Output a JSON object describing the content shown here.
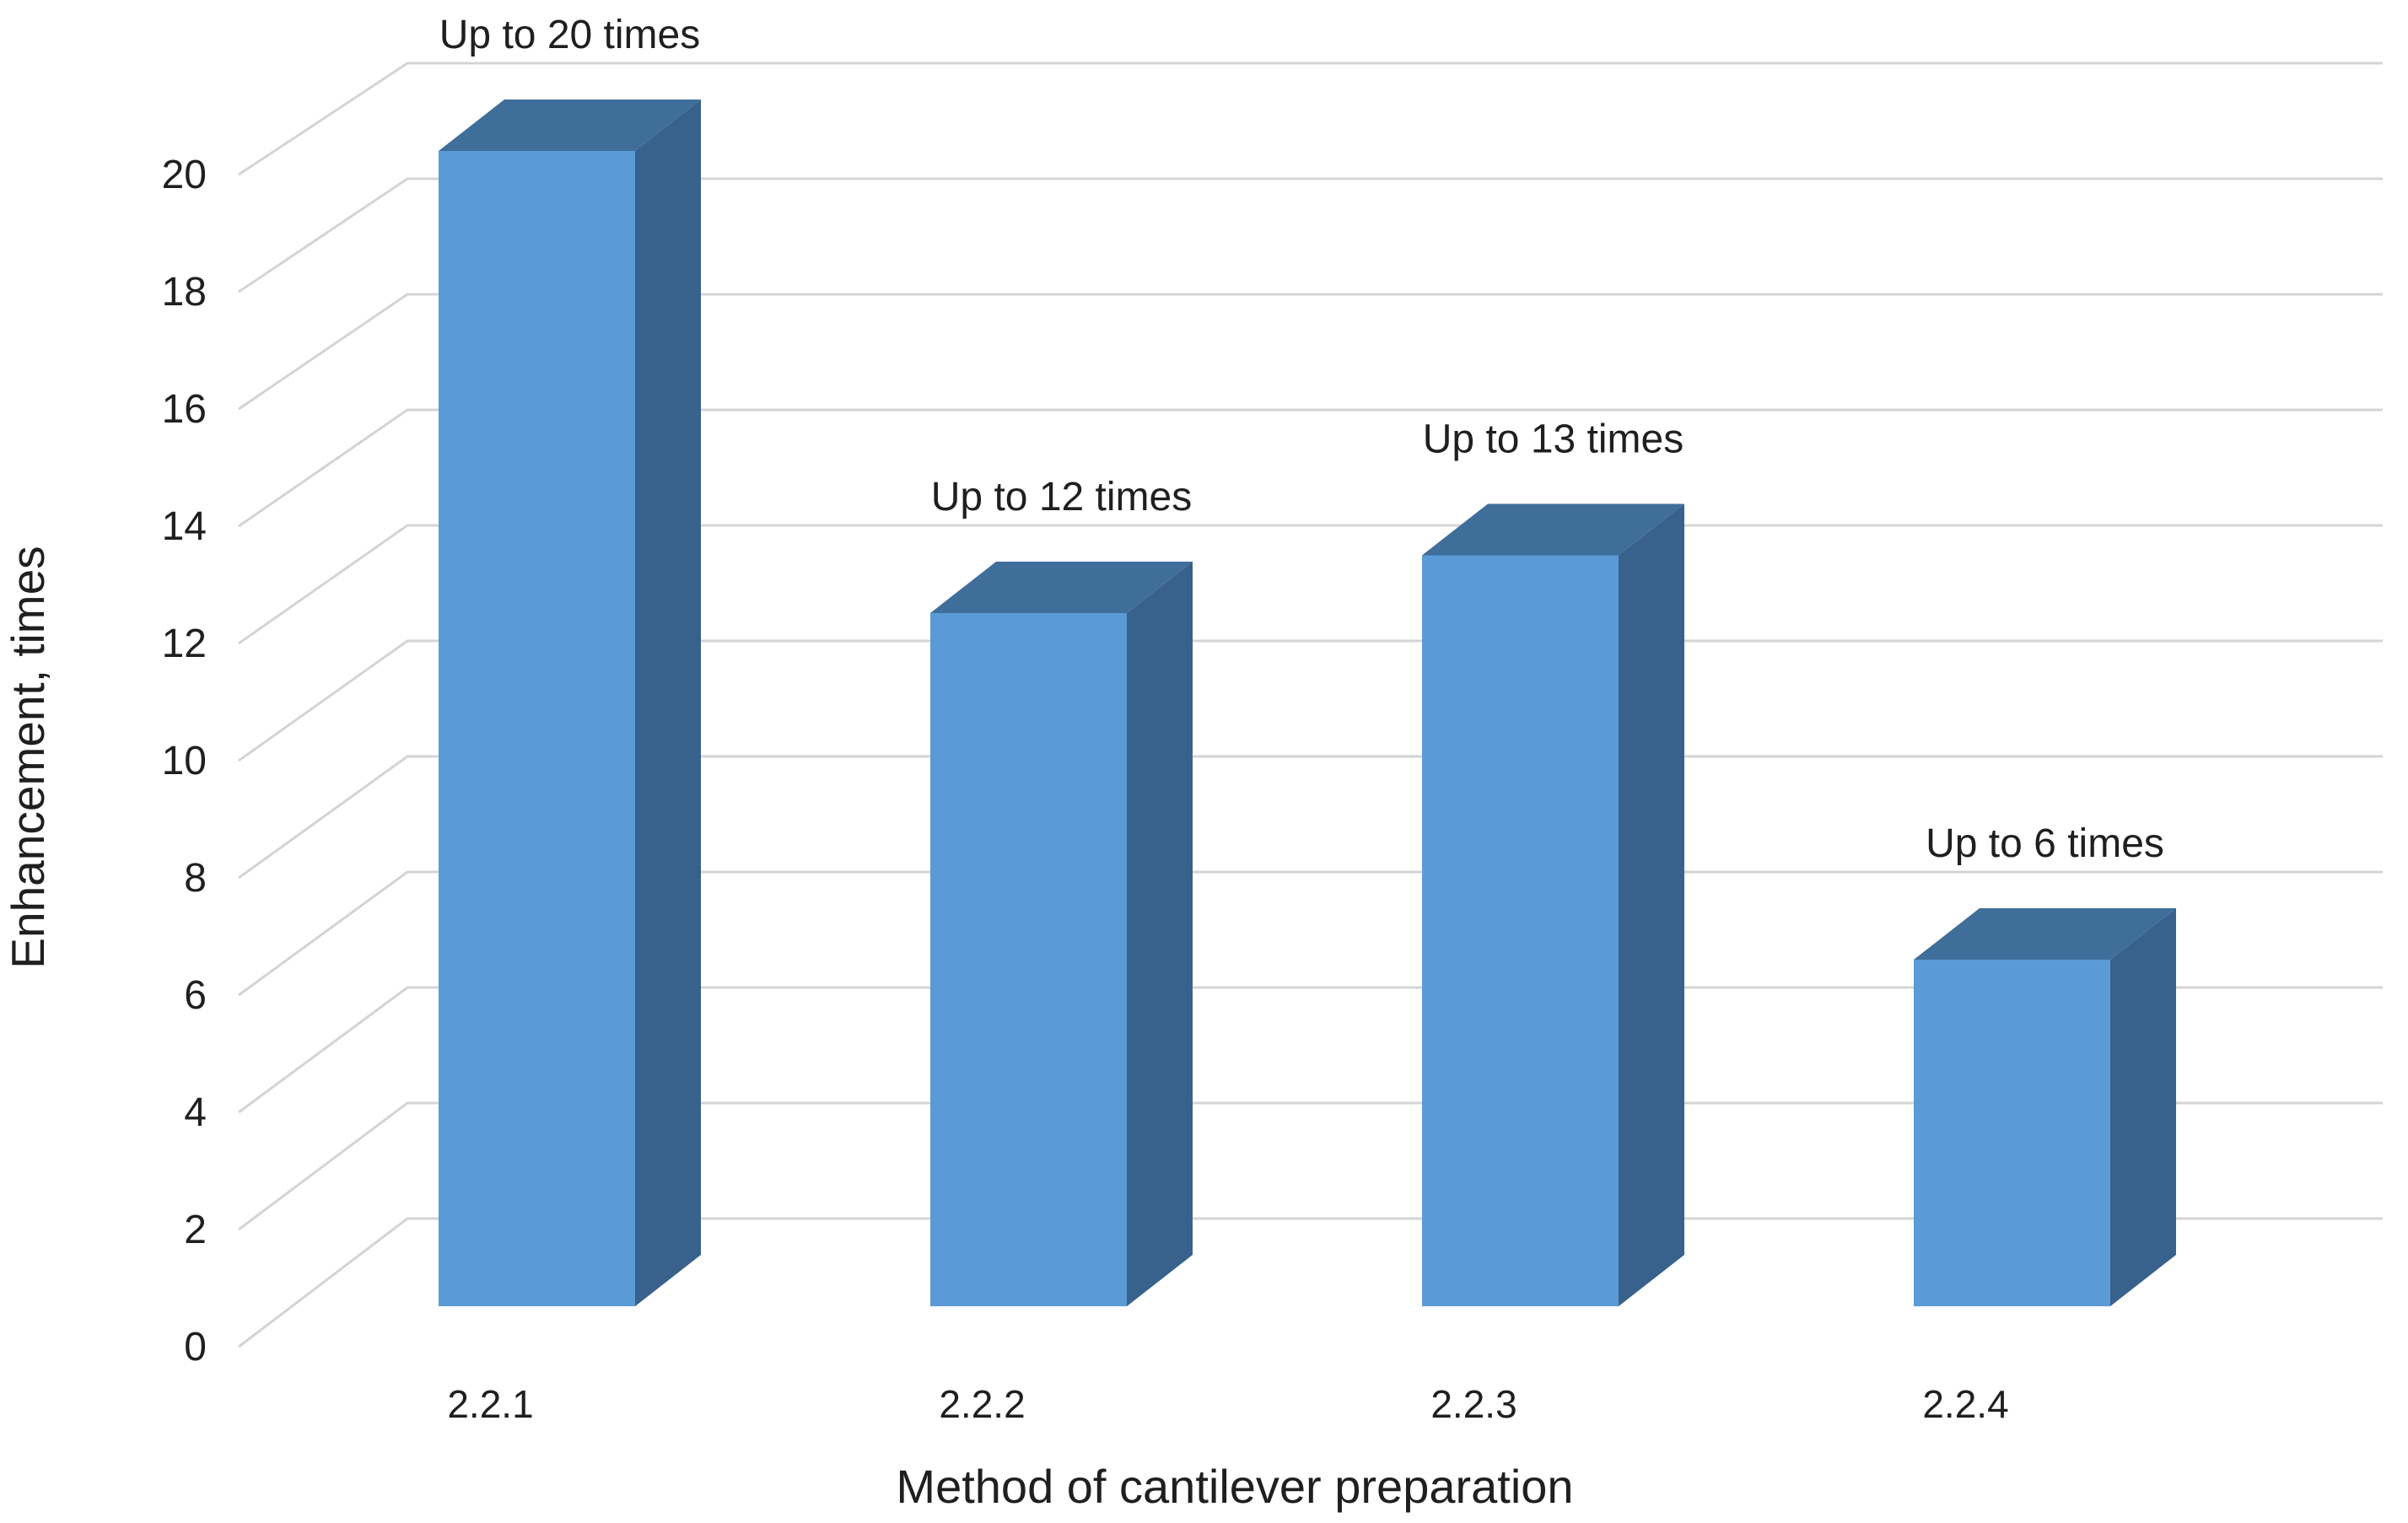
{
  "chart_data": {
    "type": "bar",
    "subtype": "3d-column",
    "title": "",
    "categories": [
      "2.2.1",
      "2.2.2",
      "2.2.3",
      "2.2.4"
    ],
    "values": [
      20,
      12,
      13,
      6
    ],
    "bar_labels": [
      "Up to 20 times",
      "Up to 12 times",
      "Up to 13 times",
      "Up to 6 times"
    ],
    "xlabel": "Method of cantilever preparation",
    "ylabel": "Enhancement, times",
    "y_ticks": [
      0,
      2,
      4,
      6,
      8,
      10,
      12,
      14,
      16,
      18,
      20
    ],
    "ylim": [
      0,
      20
    ],
    "grid": true,
    "legend_position": "none",
    "colors": {
      "bar_front": "#5B9BD5",
      "bar_top": "#406E9B",
      "bar_side": "#38618C",
      "gridline": "#D4D4D4",
      "text": "#1F1F1F",
      "background": "#FFFFFF"
    }
  }
}
